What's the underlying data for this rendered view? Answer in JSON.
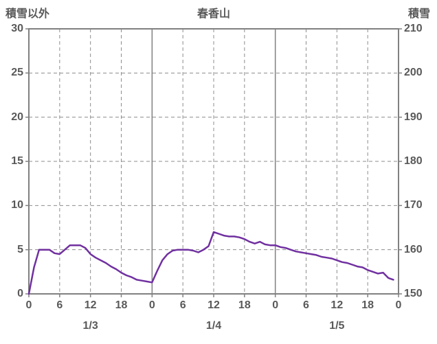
{
  "header": {
    "left_axis_title": "積雪以外",
    "chart_title": "春香山",
    "right_axis_title": "積雪"
  },
  "chart_data": {
    "type": "line",
    "title": "春香山",
    "left_axis": {
      "label": "積雪以外",
      "min": 0,
      "max": 30,
      "tick_step": 5,
      "ticks": [
        0,
        5,
        10,
        15,
        20,
        25,
        30
      ]
    },
    "right_axis": {
      "label": "積雪",
      "min": 150,
      "max": 210,
      "tick_step": 10,
      "ticks": [
        150,
        160,
        170,
        180,
        190,
        200,
        210
      ]
    },
    "x_axis": {
      "min": 0,
      "max": 72,
      "hour_tick_step": 6,
      "hour_tick_labels": [
        "0",
        "6",
        "12",
        "18",
        "0",
        "6",
        "12",
        "18",
        "0",
        "6",
        "12",
        "18",
        "0"
      ],
      "day_labels": [
        "1/3",
        "1/4",
        "1/5"
      ],
      "day_boundaries_hours": [
        24,
        48
      ]
    },
    "grid": {
      "h_dashed": [
        5,
        10,
        15,
        20,
        25
      ],
      "v_dashed_hours": [
        6,
        12,
        18,
        30,
        36,
        42,
        54,
        60,
        66
      ],
      "v_solid_hours": [
        24,
        48
      ]
    },
    "series": [
      {
        "name": "snow-line",
        "axis": "left",
        "color": "#7030a0",
        "x_start_hour": 0,
        "x_interval_hours": 1,
        "values": [
          0,
          3.0,
          5.0,
          5.0,
          5.0,
          4.6,
          4.5,
          5.0,
          5.5,
          5.5,
          5.5,
          5.2,
          4.5,
          4.1,
          3.8,
          3.5,
          3.1,
          2.8,
          2.4,
          2.1,
          1.9,
          1.6,
          1.5,
          1.4,
          1.3,
          2.6,
          3.8,
          4.5,
          4.9,
          5.0,
          5.0,
          5.0,
          4.9,
          4.7,
          5.0,
          5.4,
          7.0,
          6.8,
          6.6,
          6.5,
          6.5,
          6.4,
          6.2,
          5.9,
          5.7,
          5.9,
          5.6,
          5.5,
          5.5,
          5.3,
          5.2,
          5.0,
          4.8,
          4.7,
          4.6,
          4.5,
          4.4,
          4.2,
          4.1,
          4.0,
          3.8,
          3.6,
          3.5,
          3.3,
          3.1,
          3.0,
          2.7,
          2.5,
          2.3,
          2.4,
          1.8,
          1.6
        ]
      }
    ],
    "colors": {
      "line": "#7030a0",
      "frame": "#808080",
      "grid": "#8c8c8c",
      "text": "#595959",
      "background": "#ffffff"
    }
  }
}
